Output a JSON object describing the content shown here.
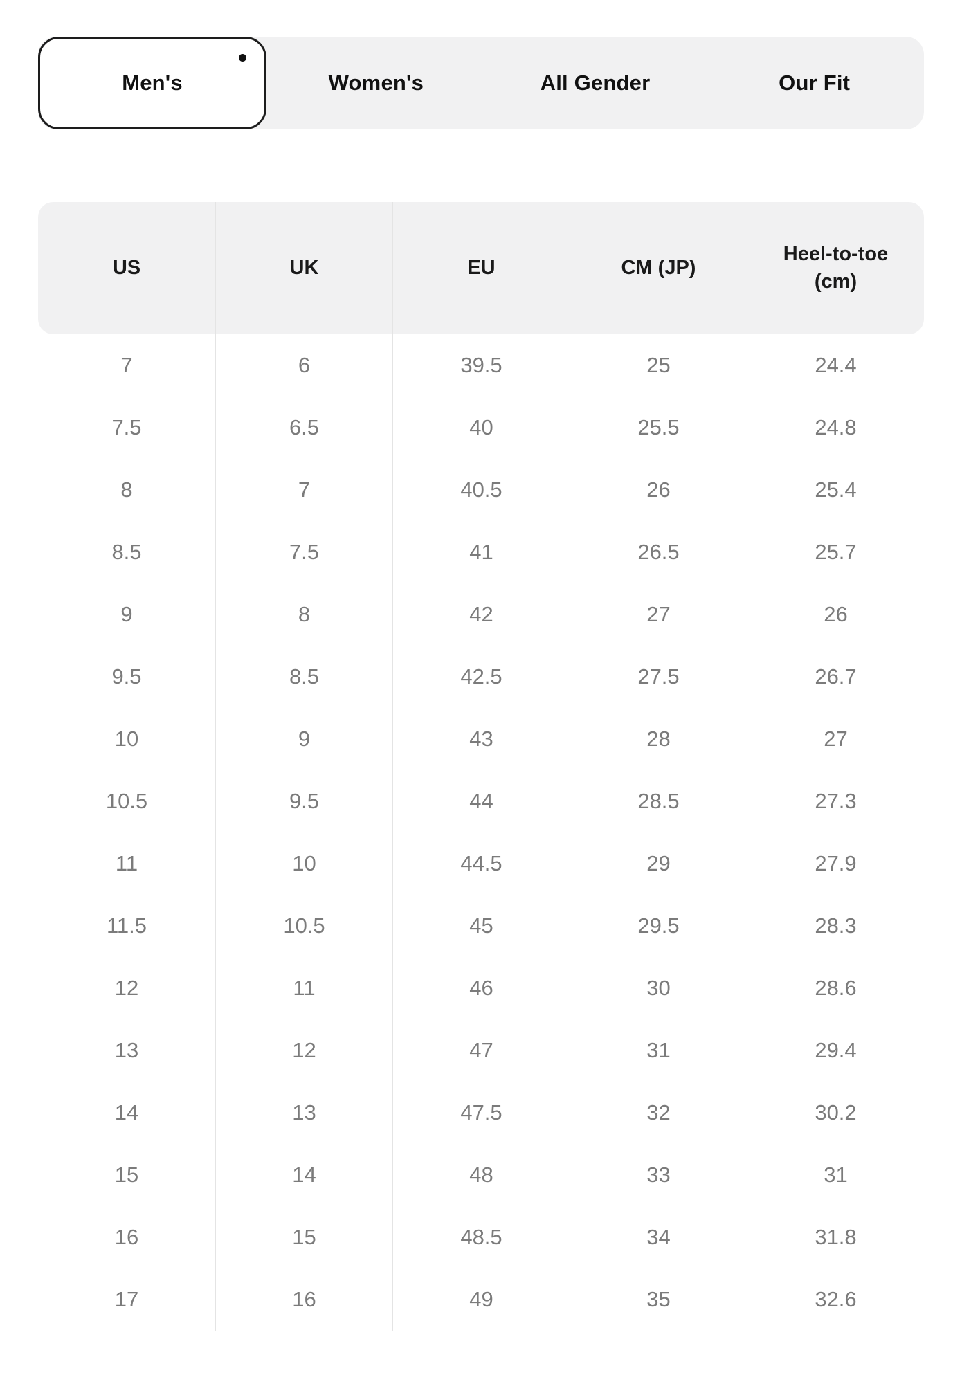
{
  "colors": {
    "strip_bg": "#f1f1f2",
    "header_bg": "#f1f1f2",
    "tab_border": "#1d1d1d",
    "active_tab_bg": "#ffffff",
    "tab_text": "#111111",
    "header_text": "#1a1a1a",
    "body_text": "#7b7b7b",
    "divider": "#e4e4e4",
    "dot": "#111111"
  },
  "tabs": {
    "items": [
      {
        "label": "Men's",
        "active": true,
        "has_dot": true
      },
      {
        "label": "Women's",
        "active": false,
        "has_dot": false
      },
      {
        "label": "All Gender",
        "active": false,
        "has_dot": false
      },
      {
        "label": "Our Fit",
        "active": false,
        "has_dot": false
      }
    ]
  },
  "table": {
    "columns": [
      "US",
      "UK",
      "EU",
      "CM (JP)",
      "Heel-to-toe (cm)"
    ],
    "rows": [
      [
        "7",
        "6",
        "39.5",
        "25",
        "24.4"
      ],
      [
        "7.5",
        "6.5",
        "40",
        "25.5",
        "24.8"
      ],
      [
        "8",
        "7",
        "40.5",
        "26",
        "25.4"
      ],
      [
        "8.5",
        "7.5",
        "41",
        "26.5",
        "25.7"
      ],
      [
        "9",
        "8",
        "42",
        "27",
        "26"
      ],
      [
        "9.5",
        "8.5",
        "42.5",
        "27.5",
        "26.7"
      ],
      [
        "10",
        "9",
        "43",
        "28",
        "27"
      ],
      [
        "10.5",
        "9.5",
        "44",
        "28.5",
        "27.3"
      ],
      [
        "11",
        "10",
        "44.5",
        "29",
        "27.9"
      ],
      [
        "11.5",
        "10.5",
        "45",
        "29.5",
        "28.3"
      ],
      [
        "12",
        "11",
        "46",
        "30",
        "28.6"
      ],
      [
        "13",
        "12",
        "47",
        "31",
        "29.4"
      ],
      [
        "14",
        "13",
        "47.5",
        "32",
        "30.2"
      ],
      [
        "15",
        "14",
        "48",
        "33",
        "31"
      ],
      [
        "16",
        "15",
        "48.5",
        "34",
        "31.8"
      ],
      [
        "17",
        "16",
        "49",
        "35",
        "32.6"
      ]
    ]
  }
}
